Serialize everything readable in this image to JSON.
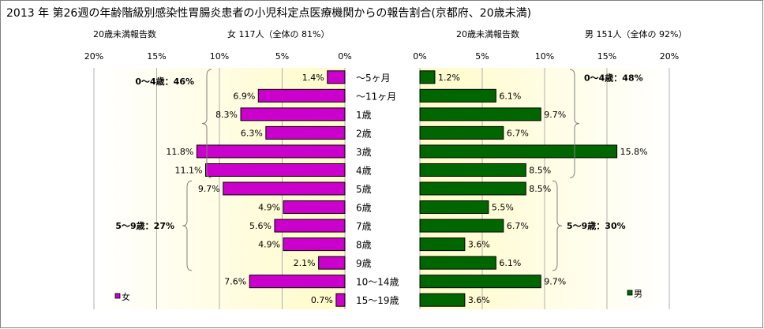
{
  "chart_data": {
    "type": "bar",
    "title": "2013 年 第26週の年齢階級別感染性胃腸炎患者の小児科定点医療機関からの報告割合(京都府、20歳未満)",
    "categories": [
      "～5ヶ月",
      "～11ヶ月",
      "1歳",
      "2歳",
      "3歳",
      "4歳",
      "5歳",
      "6歳",
      "7歳",
      "8歳",
      "9歳",
      "10～14歳",
      "15～19歳"
    ],
    "left_panel": {
      "header_label": "20歳未満報告数",
      "header_count": "女 117人（全体の 81%）",
      "axis_ticks": [
        "20%",
        "15%",
        "10%",
        "5%",
        "0%"
      ],
      "xlim": [
        0,
        20
      ],
      "series": [
        {
          "name": "女",
          "color": "#cc00cc",
          "values": [
            1.4,
            6.9,
            8.3,
            6.3,
            11.8,
            11.1,
            9.7,
            4.9,
            5.6,
            4.9,
            2.1,
            7.6,
            0.7
          ]
        }
      ],
      "data_labels": [
        "1.4%",
        "6.9%",
        "8.3%",
        "6.3%",
        "11.8%",
        "11.1%",
        "9.7%",
        "4.9%",
        "5.6%",
        "4.9%",
        "2.1%",
        "7.6%",
        "0.7%"
      ],
      "annotations": [
        {
          "text": "0～4歳：46%",
          "from_category": 0,
          "to_category": 5
        },
        {
          "text": "5～9歳：27%",
          "from_category": 6,
          "to_category": 10
        }
      ],
      "legend": "bottom-left"
    },
    "right_panel": {
      "header_label": "20歳未満報告数",
      "header_count": "男 151人（全体の 92%）",
      "axis_ticks": [
        "0%",
        "5%",
        "10%",
        "15%",
        "20%"
      ],
      "xlim": [
        0,
        20
      ],
      "series": [
        {
          "name": "男",
          "color": "#006600",
          "values": [
            1.2,
            6.1,
            9.7,
            6.7,
            15.8,
            8.5,
            8.5,
            5.5,
            6.7,
            3.6,
            6.1,
            9.7,
            3.6
          ]
        }
      ],
      "data_labels": [
        "1.2%",
        "6.1%",
        "9.7%",
        "6.7%",
        "15.8%",
        "8.5%",
        "8.5%",
        "5.5%",
        "6.7%",
        "3.6%",
        "6.1%",
        "9.7%",
        "3.6%"
      ],
      "annotations": [
        {
          "text": "0～4歳：48%",
          "from_category": 0,
          "to_category": 5
        },
        {
          "text": "5～9歳：30%",
          "from_category": 6,
          "to_category": 10
        }
      ],
      "legend": "bottom-right"
    },
    "grid": true,
    "colors": {
      "panel_fill": "#ffffcc",
      "grid": "#b0b0b0"
    }
  }
}
